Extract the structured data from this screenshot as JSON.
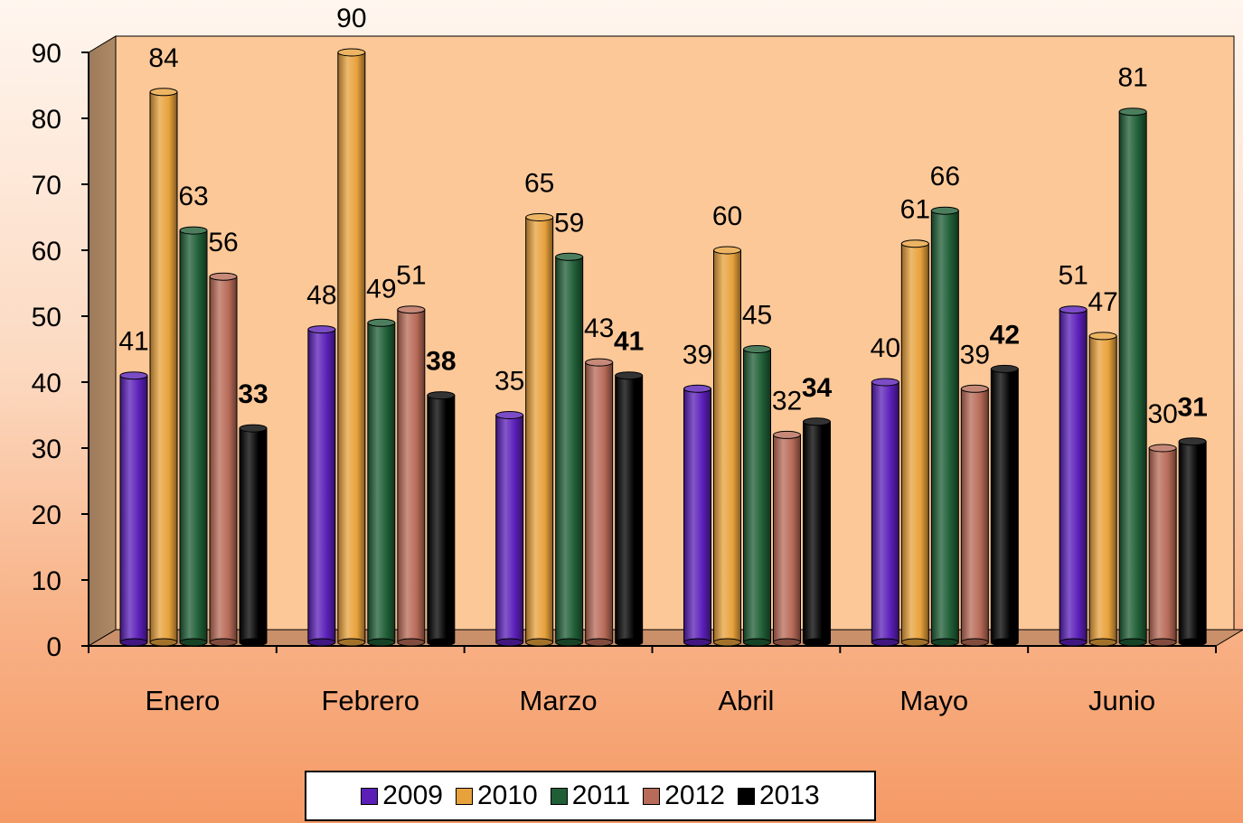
{
  "chart_data": {
    "type": "bar",
    "categories": [
      "Enero",
      "Febrero",
      "Marzo",
      "Abril",
      "Mayo",
      "Junio"
    ],
    "series": [
      {
        "name": "2009",
        "values": [
          41,
          48,
          35,
          39,
          40,
          51
        ],
        "color": "#5b1fb8",
        "label_bold": false
      },
      {
        "name": "2010",
        "values": [
          84,
          90,
          65,
          60,
          61,
          47
        ],
        "color": "#e8a23c",
        "label_bold": false
      },
      {
        "name": "2011",
        "values": [
          63,
          49,
          59,
          45,
          66,
          81
        ],
        "color": "#1f5e36",
        "label_bold": false
      },
      {
        "name": "2012",
        "values": [
          56,
          51,
          43,
          32,
          39,
          30
        ],
        "color": "#b86b58",
        "label_bold": false
      },
      {
        "name": "2013",
        "values": [
          33,
          38,
          41,
          34,
          42,
          31
        ],
        "color": "#000000",
        "label_bold": true
      }
    ],
    "y_ticks": [
      "0",
      "10",
      "20",
      "30",
      "40",
      "50",
      "60",
      "70",
      "80",
      "90"
    ],
    "ylim": [
      0,
      90
    ],
    "grid": false,
    "legend_position": "bottom",
    "title": "",
    "xlabel": "",
    "ylabel": ""
  }
}
